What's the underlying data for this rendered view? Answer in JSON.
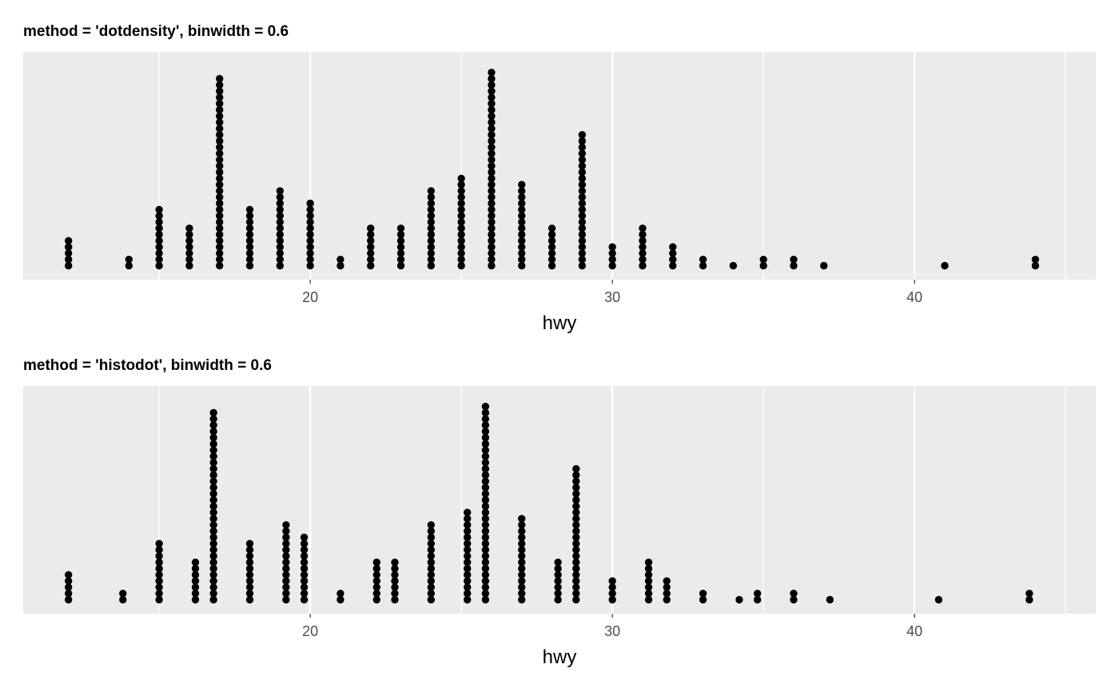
{
  "chart_data": [
    {
      "type": "dotplot",
      "title": "method = 'dotdensity', binwidth = 0.6",
      "xlabel": "hwy",
      "ylabel": "",
      "xlim": [
        10.5,
        46
      ],
      "x_ticks": [
        20,
        30,
        40
      ],
      "x_tick_labels": [
        "20",
        "30",
        "40"
      ],
      "grid": true,
      "bins": [
        {
          "x": 12,
          "count": 5
        },
        {
          "x": 14,
          "count": 2
        },
        {
          "x": 15,
          "count": 10
        },
        {
          "x": 16,
          "count": 7
        },
        {
          "x": 17,
          "count": 31
        },
        {
          "x": 18,
          "count": 10
        },
        {
          "x": 19,
          "count": 13
        },
        {
          "x": 20,
          "count": 11
        },
        {
          "x": 21,
          "count": 2
        },
        {
          "x": 22,
          "count": 7
        },
        {
          "x": 23,
          "count": 7
        },
        {
          "x": 24,
          "count": 13
        },
        {
          "x": 25,
          "count": 15
        },
        {
          "x": 26,
          "count": 32
        },
        {
          "x": 27,
          "count": 14
        },
        {
          "x": 28,
          "count": 7
        },
        {
          "x": 29,
          "count": 22
        },
        {
          "x": 30,
          "count": 4
        },
        {
          "x": 31,
          "count": 7
        },
        {
          "x": 32,
          "count": 4
        },
        {
          "x": 33,
          "count": 2
        },
        {
          "x": 34,
          "count": 1
        },
        {
          "x": 35,
          "count": 2
        },
        {
          "x": 36,
          "count": 2
        },
        {
          "x": 37,
          "count": 1
        },
        {
          "x": 41,
          "count": 1
        },
        {
          "x": 44,
          "count": 2
        }
      ]
    },
    {
      "type": "dotplot",
      "title": "method = 'histodot', binwidth = 0.6",
      "xlabel": "hwy",
      "ylabel": "",
      "xlim": [
        10.5,
        46
      ],
      "x_ticks": [
        20,
        30,
        40
      ],
      "x_tick_labels": [
        "20",
        "30",
        "40"
      ],
      "grid": true,
      "bins": [
        {
          "x": 12,
          "count": 5
        },
        {
          "x": 13.8,
          "count": 2
        },
        {
          "x": 15,
          "count": 10
        },
        {
          "x": 16.2,
          "count": 7
        },
        {
          "x": 16.8,
          "count": 31
        },
        {
          "x": 18,
          "count": 10
        },
        {
          "x": 19.2,
          "count": 13
        },
        {
          "x": 19.8,
          "count": 11
        },
        {
          "x": 21,
          "count": 2
        },
        {
          "x": 22.2,
          "count": 7
        },
        {
          "x": 22.8,
          "count": 7
        },
        {
          "x": 24,
          "count": 13
        },
        {
          "x": 25.2,
          "count": 15
        },
        {
          "x": 25.8,
          "count": 32
        },
        {
          "x": 27,
          "count": 14
        },
        {
          "x": 28.2,
          "count": 7
        },
        {
          "x": 28.8,
          "count": 22
        },
        {
          "x": 30,
          "count": 4
        },
        {
          "x": 31.2,
          "count": 7
        },
        {
          "x": 31.8,
          "count": 4
        },
        {
          "x": 33,
          "count": 2
        },
        {
          "x": 34.2,
          "count": 1
        },
        {
          "x": 34.8,
          "count": 2
        },
        {
          "x": 36,
          "count": 2
        },
        {
          "x": 37.2,
          "count": 1
        },
        {
          "x": 40.8,
          "count": 1
        },
        {
          "x": 43.8,
          "count": 2
        }
      ]
    }
  ],
  "colors": {
    "panel_background": "#ebebeb",
    "grid_major": "#ffffff",
    "dot_fill": "#000000"
  }
}
